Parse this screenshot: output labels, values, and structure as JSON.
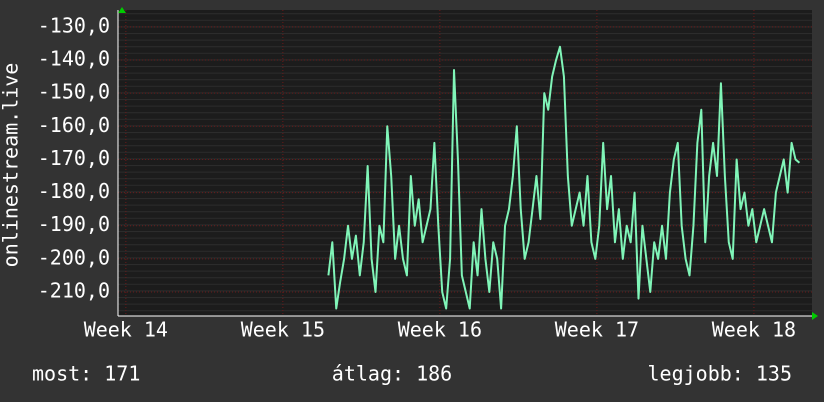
{
  "chart_data": {
    "type": "line",
    "y_axis_label": "onlinestream.live",
    "xlim": [
      13.95,
      18.37
    ],
    "xticks": [
      {
        "value": 14,
        "label": "Week 14"
      },
      {
        "value": 15,
        "label": "Week 15"
      },
      {
        "value": 16,
        "label": "Week 16"
      },
      {
        "value": 17,
        "label": "Week 17"
      },
      {
        "value": 18,
        "label": "Week 18"
      }
    ],
    "ylim": [
      -217.25,
      -124.9
    ],
    "yticks": [
      {
        "value": -130,
        "label": "-130,0"
      },
      {
        "value": -140,
        "label": "-140,0"
      },
      {
        "value": -150,
        "label": "-150,0"
      },
      {
        "value": -160,
        "label": "-160,0"
      },
      {
        "value": -170,
        "label": "-170,0"
      },
      {
        "value": -180,
        "label": "-180,0"
      },
      {
        "value": -190,
        "label": "-190,0"
      },
      {
        "value": -200,
        "label": "-200,0"
      },
      {
        "value": -210,
        "label": "-210,0"
      }
    ],
    "grid": true,
    "x": [
      15.29,
      15.315,
      15.34,
      15.365,
      15.39,
      15.415,
      15.44,
      15.465,
      15.49,
      15.515,
      15.54,
      15.565,
      15.59,
      15.615,
      15.64,
      15.665,
      15.69,
      15.715,
      15.74,
      15.765,
      15.79,
      15.815,
      15.84,
      15.865,
      15.89,
      15.915,
      15.94,
      15.965,
      15.99,
      16.015,
      16.04,
      16.065,
      16.09,
      16.115,
      16.14,
      16.165,
      16.19,
      16.215,
      16.24,
      16.265,
      16.29,
      16.315,
      16.34,
      16.365,
      16.39,
      16.415,
      16.44,
      16.465,
      16.49,
      16.515,
      16.54,
      16.565,
      16.59,
      16.615,
      16.64,
      16.665,
      16.69,
      16.715,
      16.74,
      16.765,
      16.79,
      16.815,
      16.84,
      16.865,
      16.89,
      16.915,
      16.94,
      16.965,
      16.99,
      17.015,
      17.04,
      17.065,
      17.09,
      17.115,
      17.14,
      17.165,
      17.19,
      17.215,
      17.24,
      17.265,
      17.29,
      17.315,
      17.34,
      17.365,
      17.39,
      17.415,
      17.44,
      17.465,
      17.49,
      17.515,
      17.54,
      17.565,
      17.59,
      17.615,
      17.64,
      17.665,
      17.69,
      17.715,
      17.74,
      17.765,
      17.79,
      17.815,
      17.84,
      17.865,
      17.89,
      17.915,
      17.94,
      17.965,
      17.99,
      18.015,
      18.04,
      18.065,
      18.09,
      18.115,
      18.14,
      18.165,
      18.19,
      18.215,
      18.24,
      18.265,
      18.29
    ],
    "series": [
      {
        "color": "#80f5b8",
        "values": [
          -205,
          -195,
          -215,
          -207,
          -200,
          -190,
          -200,
          -193,
          -205,
          -195,
          -172,
          -200,
          -210,
          -190,
          -195,
          -160,
          -175,
          -200,
          -190,
          -200,
          -205,
          -175,
          -190,
          -182,
          -195,
          -190,
          -185,
          -165,
          -190,
          -210,
          -215,
          -200,
          -143,
          -170,
          -205,
          -210,
          -215,
          -195,
          -205,
          -185,
          -200,
          -210,
          -195,
          -200,
          -215,
          -190,
          -185,
          -175,
          -160,
          -185,
          -200,
          -195,
          -185,
          -175,
          -188,
          -150,
          -155,
          -145,
          -140,
          -136,
          -145,
          -175,
          -190,
          -185,
          -180,
          -190,
          -175,
          -195,
          -200,
          -190,
          -165,
          -185,
          -175,
          -195,
          -185,
          -200,
          -190,
          -195,
          -180,
          -212,
          -190,
          -200,
          -210,
          -195,
          -200,
          -190,
          -200,
          -180,
          -170,
          -165,
          -190,
          -200,
          -205,
          -190,
          -165,
          -155,
          -195,
          -175,
          -165,
          -175,
          -147,
          -175,
          -195,
          -200,
          -170,
          -185,
          -180,
          -190,
          -185,
          -195,
          -190,
          -185,
          -190,
          -195,
          -180,
          -175,
          -170,
          -180,
          -165,
          -170,
          -171
        ]
      }
    ]
  },
  "footer": [
    "most: 171",
    "átlag: 186",
    "legjobb: 135"
  ]
}
